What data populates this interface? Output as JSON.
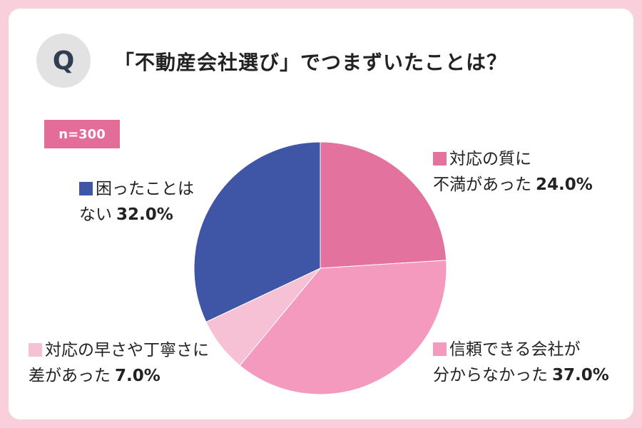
{
  "badge": {
    "letter": "Q"
  },
  "question": "「不動産会社選び」でつまずいたことは？",
  "sample": "n=300",
  "colors": {
    "background": "#f9cfdc",
    "badge_accent": "#e36c98"
  },
  "chart_data": {
    "type": "pie",
    "title": "「不動産会社選び」でつまずいたことは？",
    "start_angle_deg": 0,
    "direction": "clockwise",
    "slices": [
      {
        "line1": "対応の質に",
        "line2": "不満があった",
        "value_label": "24.0%",
        "value": 24.0,
        "color": "#e3729f"
      },
      {
        "line1": "信頼できる会社が",
        "line2": "分からなかった",
        "value_label": "37.0%",
        "value": 37.0,
        "color": "#f49abf"
      },
      {
        "line1": "対応の早さや丁寧さに",
        "line2": "差があった",
        "value_label": "7.0%",
        "value": 7.0,
        "color": "#f6c1d4"
      },
      {
        "line1": "困ったことは",
        "line2": "ない",
        "value_label": "32.0%",
        "value": 32.0,
        "color": "#3f55a5"
      }
    ]
  }
}
